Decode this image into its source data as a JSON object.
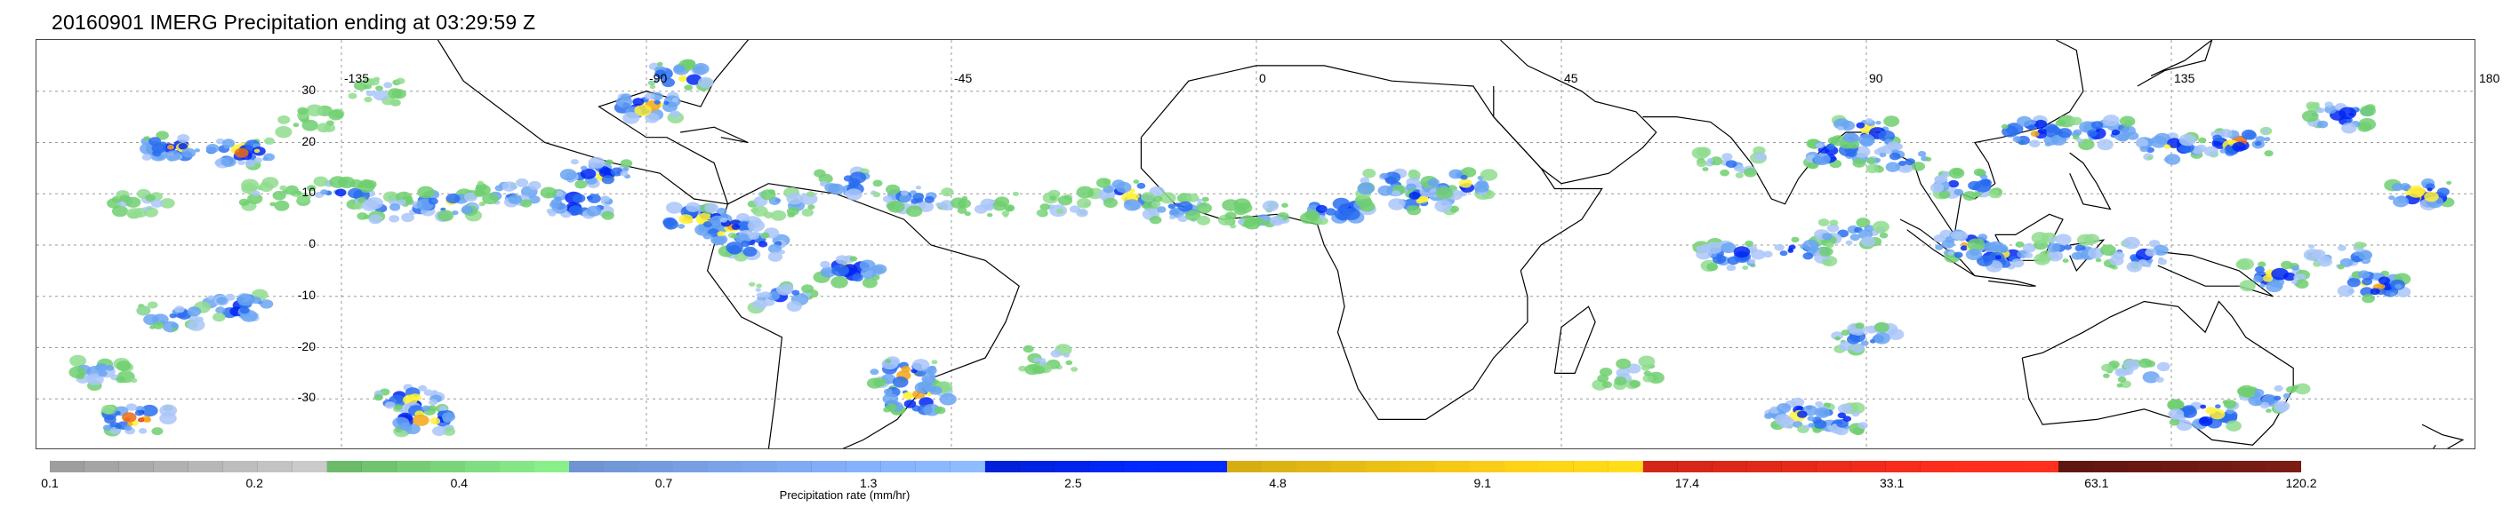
{
  "title": "20160901 IMERG Precipitation ending at 03:29:59 Z",
  "map": {
    "lon_range": [
      -180,
      180
    ],
    "lat_range": [
      -40,
      40
    ],
    "grid": true,
    "grid_lons": [
      -135,
      -90,
      -45,
      0,
      45,
      90,
      135,
      180
    ],
    "grid_lats": [
      30,
      20,
      10,
      0,
      -10,
      -20,
      -30
    ],
    "lon_labels": [
      "-135",
      "-90",
      "-45",
      "0",
      "45",
      "90",
      "135",
      "180"
    ],
    "lat_labels": [
      "30",
      "20",
      "10",
      "0",
      "-10",
      "-20",
      "-30"
    ],
    "coastline_color": "#000000",
    "grid_color": "#9a9a9a",
    "precip_cells": [
      {
        "lon": -165,
        "lat": 8,
        "v": 3
      },
      {
        "lon": -160,
        "lat": 19,
        "v": 6
      },
      {
        "lon": -150,
        "lat": 18,
        "v": 7
      },
      {
        "lon": -145,
        "lat": 10,
        "v": 3
      },
      {
        "lon": -135,
        "lat": 10,
        "v": 5
      },
      {
        "lon": -128,
        "lat": 7,
        "v": 4
      },
      {
        "lon": -120,
        "lat": 8,
        "v": 6
      },
      {
        "lon": -110,
        "lat": 10,
        "v": 5
      },
      {
        "lon": -100,
        "lat": 8,
        "v": 7
      },
      {
        "lon": -97,
        "lat": 14,
        "v": 6
      },
      {
        "lon": -90,
        "lat": 27,
        "v": 7
      },
      {
        "lon": -85,
        "lat": 33,
        "v": 6
      },
      {
        "lon": -83,
        "lat": 5,
        "v": 8
      },
      {
        "lon": -78,
        "lat": 3,
        "v": 7
      },
      {
        "lon": -74,
        "lat": 0,
        "v": 6
      },
      {
        "lon": -70,
        "lat": 8,
        "v": 4
      },
      {
        "lon": -60,
        "lat": 12,
        "v": 5
      },
      {
        "lon": -50,
        "lat": 9,
        "v": 5
      },
      {
        "lon": -40,
        "lat": 8,
        "v": 3
      },
      {
        "lon": -28,
        "lat": 8,
        "v": 3
      },
      {
        "lon": -18,
        "lat": 10,
        "v": 6
      },
      {
        "lon": -12,
        "lat": 7,
        "v": 5
      },
      {
        "lon": 0,
        "lat": 6,
        "v": 4
      },
      {
        "lon": 12,
        "lat": 7,
        "v": 6
      },
      {
        "lon": 20,
        "lat": 12,
        "v": 5
      },
      {
        "lon": 25,
        "lat": 9,
        "v": 6
      },
      {
        "lon": 30,
        "lat": 12,
        "v": 6
      },
      {
        "lon": 70,
        "lat": 16,
        "v": 4
      },
      {
        "lon": 85,
        "lat": 18,
        "v": 6
      },
      {
        "lon": 90,
        "lat": 22,
        "v": 7
      },
      {
        "lon": 95,
        "lat": 17,
        "v": 5
      },
      {
        "lon": 105,
        "lat": 12,
        "v": 6
      },
      {
        "lon": 115,
        "lat": 22,
        "v": 7
      },
      {
        "lon": 125,
        "lat": 22,
        "v": 6
      },
      {
        "lon": 135,
        "lat": 19,
        "v": 6
      },
      {
        "lon": 145,
        "lat": 20,
        "v": 7
      },
      {
        "lon": 160,
        "lat": 25,
        "v": 6
      },
      {
        "lon": 172,
        "lat": 10,
        "v": 7
      },
      {
        "lon": 70,
        "lat": -2,
        "v": 6
      },
      {
        "lon": 80,
        "lat": -1,
        "v": 5
      },
      {
        "lon": 88,
        "lat": 2,
        "v": 5
      },
      {
        "lon": 105,
        "lat": 0,
        "v": 7
      },
      {
        "lon": 110,
        "lat": -2,
        "v": 6
      },
      {
        "lon": 120,
        "lat": -1,
        "v": 5
      },
      {
        "lon": 130,
        "lat": -2,
        "v": 5
      },
      {
        "lon": 150,
        "lat": -6,
        "v": 6
      },
      {
        "lon": 165,
        "lat": -8,
        "v": 7
      },
      {
        "lon": 160,
        "lat": -2,
        "v": 5
      },
      {
        "lon": -150,
        "lat": -12,
        "v": 6
      },
      {
        "lon": -160,
        "lat": -14,
        "v": 5
      },
      {
        "lon": -170,
        "lat": -25,
        "v": 4
      },
      {
        "lon": -165,
        "lat": -34,
        "v": 8
      },
      {
        "lon": -125,
        "lat": -30,
        "v": 6
      },
      {
        "lon": -123,
        "lat": -34,
        "v": 7
      },
      {
        "lon": -52,
        "lat": -25,
        "v": 7
      },
      {
        "lon": -50,
        "lat": -30,
        "v": 8
      },
      {
        "lon": -30,
        "lat": -22,
        "v": 3
      },
      {
        "lon": 55,
        "lat": -25,
        "v": 3
      },
      {
        "lon": 80,
        "lat": -33,
        "v": 6
      },
      {
        "lon": 85,
        "lat": -34,
        "v": 6
      },
      {
        "lon": 90,
        "lat": -18,
        "v": 5
      },
      {
        "lon": 130,
        "lat": -25,
        "v": 4
      },
      {
        "lon": 140,
        "lat": -33,
        "v": 7
      },
      {
        "lon": 150,
        "lat": -30,
        "v": 5
      },
      {
        "lon": -130,
        "lat": 30,
        "v": 3
      },
      {
        "lon": -140,
        "lat": 24,
        "v": 2
      },
      {
        "lon": -60,
        "lat": -5,
        "v": 6
      },
      {
        "lon": -70,
        "lat": -10,
        "v": 5
      }
    ]
  },
  "colorbar": {
    "label": "Precipitation rate (mm/hr)",
    "tick_labels": [
      "0.1",
      "0.2",
      "0.4",
      "0.7",
      "1.3",
      "2.5",
      "4.8",
      "9.1",
      "17.4",
      "33.1",
      "63.1",
      "120.2"
    ],
    "segments": [
      {
        "count": 8,
        "color": "#b4b4b4"
      },
      {
        "count": 7,
        "color": "#7ad57a"
      },
      {
        "count": 12,
        "color": "#7fa8f0"
      },
      {
        "count": 7,
        "color": "#0026f5"
      },
      {
        "count": 12,
        "color": "#f3c616"
      },
      {
        "count": 12,
        "color": "#ee2b1b"
      },
      {
        "count": 7,
        "color": "#6e1a13"
      }
    ],
    "palette": [
      "#b4b4b4",
      "#8fdc8f",
      "#6fcf6f",
      "#a9c6f8",
      "#6aa4f2",
      "#2a6df0",
      "#0026f5",
      "#fff23a",
      "#f5a619",
      "#ec6b14",
      "#e52616",
      "#a51212",
      "#6a1a12"
    ]
  }
}
